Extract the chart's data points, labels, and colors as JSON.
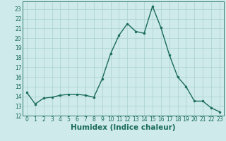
{
  "x": [
    0,
    1,
    2,
    3,
    4,
    5,
    6,
    7,
    8,
    9,
    10,
    11,
    12,
    13,
    14,
    15,
    16,
    17,
    18,
    19,
    20,
    21,
    22,
    23
  ],
  "y": [
    14.4,
    13.2,
    13.8,
    13.9,
    14.1,
    14.2,
    14.2,
    14.1,
    13.9,
    15.8,
    18.4,
    20.3,
    21.5,
    20.7,
    20.5,
    23.3,
    21.1,
    18.3,
    16.0,
    15.0,
    13.5,
    13.5,
    12.8,
    12.4
  ],
  "line_color": "#1a6b5a",
  "marker": "o",
  "marker_size": 2.0,
  "bg_color": "#ceeaea",
  "grid_color": "#aacfcf",
  "xlabel": "Humidex (Indice chaleur)",
  "xlim": [
    -0.5,
    23.5
  ],
  "ylim": [
    12,
    23.8
  ],
  "yticks": [
    12,
    13,
    14,
    15,
    16,
    17,
    18,
    19,
    20,
    21,
    22,
    23
  ],
  "xticks": [
    0,
    1,
    2,
    3,
    4,
    5,
    6,
    7,
    8,
    9,
    10,
    11,
    12,
    13,
    14,
    15,
    16,
    17,
    18,
    19,
    20,
    21,
    22,
    23
  ],
  "tick_label_fontsize": 5.5,
  "xlabel_fontsize": 7.5,
  "axis_color": "#1a6b5a",
  "linewidth": 1.0
}
